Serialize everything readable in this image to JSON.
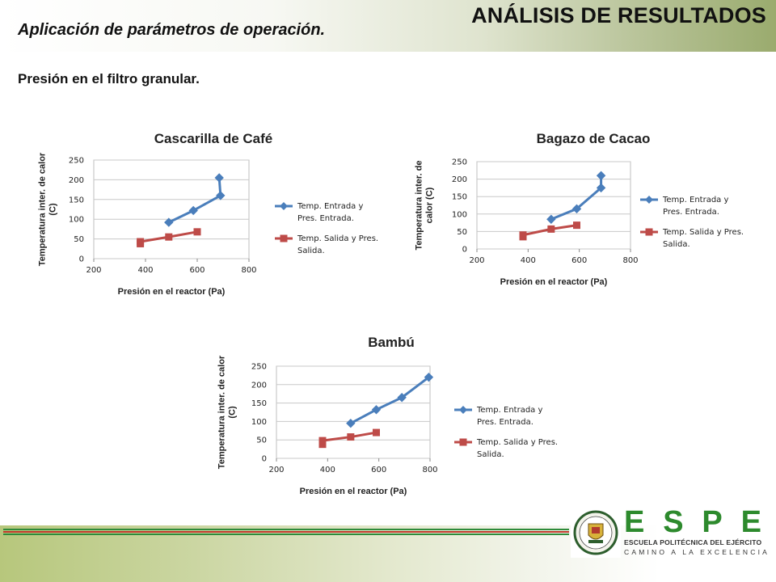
{
  "header": {
    "title": "ANÁLISIS DE RESULTADOS",
    "subtitle": "Aplicación de parámetros de operación.",
    "section": "Presión en el filtro granular."
  },
  "colors": {
    "series_entrada": "#4a7ebb",
    "series_salida": "#be4b48",
    "stripe_green": "#2e8b3a",
    "stripe_red": "#c0392b",
    "logo_green": "#2d8a2d"
  },
  "logo": {
    "letters": [
      "E",
      "S",
      "P",
      "E"
    ],
    "line1": "ESCUELA POLITÉCNICA DEL EJÉRCITO",
    "line2": "CAMINO A LA EXCELENCIA",
    "emblem_icon": "shield-emblem-icon"
  },
  "chart_data": [
    {
      "type": "scatter",
      "title": "Cascarilla de Café",
      "xlabel": "Presión en el reactor (Pa)",
      "ylabel": "Temperatura inter.  de calor (C)",
      "xlim": [
        200,
        800
      ],
      "ylim": [
        0,
        250
      ],
      "xticks": [
        200,
        400,
        600,
        800
      ],
      "yticks": [
        0,
        50,
        100,
        150,
        200,
        250
      ],
      "legend_position": "right",
      "series": [
        {
          "name": "Temp. Entrada y Pres. Entrada.",
          "color": "#4a7ebb",
          "marker": "diamond",
          "x": [
            490,
            585,
            690,
            685
          ],
          "y": [
            92,
            122,
            160,
            205
          ]
        },
        {
          "name": "Temp. Salida y Pres. Salida.",
          "color": "#be4b48",
          "marker": "square",
          "x": [
            380,
            380,
            490,
            600
          ],
          "y": [
            38,
            43,
            55,
            68
          ]
        }
      ]
    },
    {
      "type": "scatter",
      "title": "Bagazo de Cacao",
      "xlabel": "Presión en el reactor (Pa)",
      "ylabel": "Temperatura inter. de calor (C)",
      "xlim": [
        200,
        800
      ],
      "ylim": [
        0,
        250
      ],
      "xticks": [
        200,
        400,
        600,
        800
      ],
      "yticks": [
        0,
        50,
        100,
        150,
        200,
        250
      ],
      "legend_position": "right",
      "series": [
        {
          "name": "Temp. Entrada y Pres. Entrada.",
          "color": "#4a7ebb",
          "marker": "diamond",
          "x": [
            490,
            590,
            685,
            685
          ],
          "y": [
            85,
            115,
            175,
            210
          ]
        },
        {
          "name": "Temp. Salida y Pres. Salida.",
          "color": "#be4b48",
          "marker": "square",
          "x": [
            380,
            380,
            490,
            590
          ],
          "y": [
            35,
            40,
            57,
            68
          ]
        }
      ]
    },
    {
      "type": "scatter",
      "title": "Bambú",
      "xlabel": "Presión en el reactor (Pa)",
      "ylabel": "Temperatura inter.  de calor (C)",
      "xlim": [
        200,
        800
      ],
      "ylim": [
        0,
        250
      ],
      "xticks": [
        200,
        400,
        600,
        800
      ],
      "yticks": [
        0,
        50,
        100,
        150,
        200,
        250
      ],
      "legend_position": "right",
      "series": [
        {
          "name": "Temp. Entrada y Pres. Entrada.",
          "color": "#4a7ebb",
          "marker": "diamond",
          "x": [
            490,
            590,
            690,
            795
          ],
          "y": [
            95,
            132,
            165,
            220
          ]
        },
        {
          "name": "Temp. Salida y Pres. Salida.",
          "color": "#be4b48",
          "marker": "square",
          "x": [
            380,
            380,
            490,
            590
          ],
          "y": [
            38,
            48,
            58,
            70
          ]
        }
      ]
    }
  ]
}
